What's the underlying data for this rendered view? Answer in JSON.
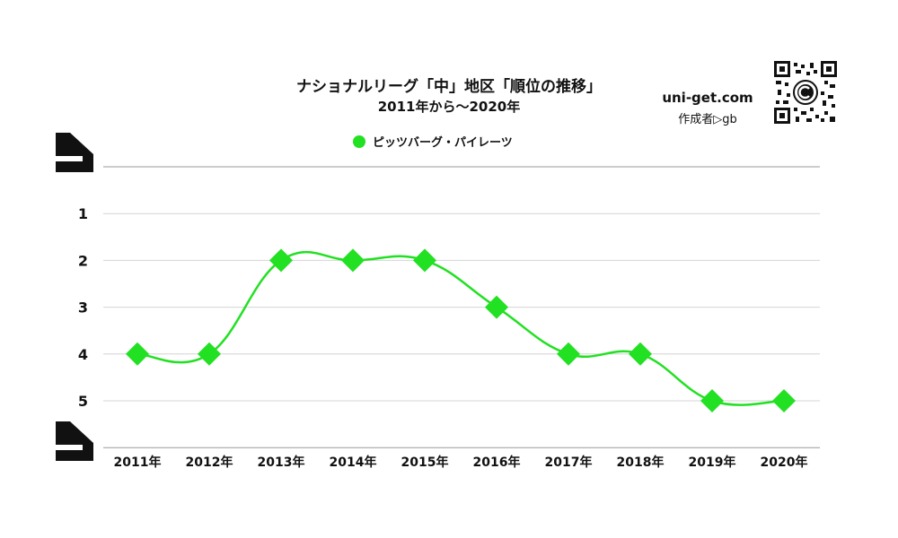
{
  "chart_data": {
    "type": "line",
    "title": "ナショナルリーグ「中」地区「順位の推移」",
    "subtitle": "2011年から～2020年",
    "categories": [
      "2011年",
      "2012年",
      "2013年",
      "2014年",
      "2015年",
      "2016年",
      "2017年",
      "2018年",
      "2019年",
      "2020年"
    ],
    "series": [
      {
        "name": "ピッツバーグ・パイレーツ",
        "color": "#22e022",
        "values": [
          4,
          4,
          2,
          2,
          2,
          3,
          4,
          4,
          5,
          5
        ]
      }
    ],
    "y_ticks": [
      "1",
      "2",
      "3",
      "4",
      "5"
    ],
    "ylim": [
      6,
      0
    ],
    "y_inverted": true,
    "grid": true,
    "legend_position": "top-center",
    "marker": "diamond"
  },
  "brand": {
    "site": "uni-get.com",
    "author": "作成者▷gb"
  },
  "icons": {
    "qr": "qr-code-icon",
    "corner_top": "corner-bracket-icon",
    "corner_bottom": "corner-bracket-icon"
  }
}
